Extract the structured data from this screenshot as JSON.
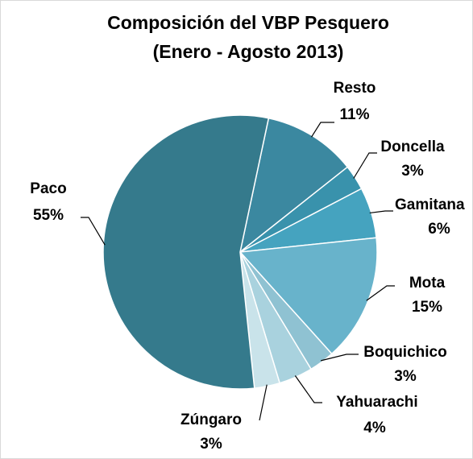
{
  "chart_data": {
    "type": "pie",
    "title": "Composición del VBP Pesquero",
    "subtitle": "(Enero - Agosto 2013)",
    "categories": [
      "Resto",
      "Doncella",
      "Gamitana",
      "Mota",
      "Boquichico",
      "Yahuarachi",
      "Zúngaro",
      "Paco"
    ],
    "values": [
      11,
      3,
      6,
      15,
      3,
      4,
      3,
      55
    ],
    "value_labels": [
      "11%",
      "3%",
      "6%",
      "15%",
      "3%",
      "4%",
      "3%",
      "55%"
    ],
    "colors": [
      "#3b88a0",
      "#3992ac",
      "#45a3bf",
      "#68b3cb",
      "#8fc2d2",
      "#a9d2de",
      "#c9e3ea",
      "#357a8c"
    ]
  }
}
